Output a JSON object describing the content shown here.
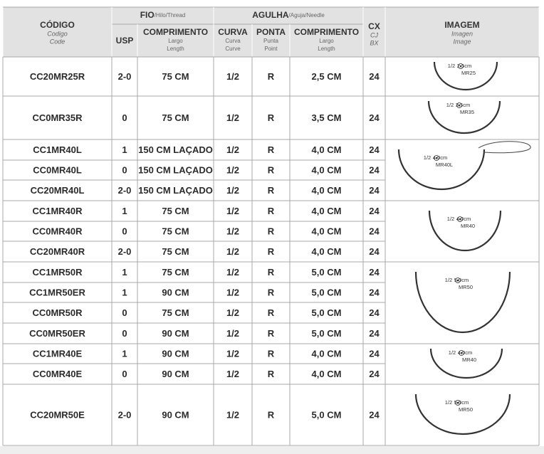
{
  "header": {
    "codigo": {
      "title": "CÓDIGO",
      "es": "Codigo",
      "en": "Code"
    },
    "fio": {
      "title": "FIO",
      "sub": "/Hilo/Thread"
    },
    "usp": "USP",
    "fio_comprimento": {
      "title": "COMPRIMENTO",
      "es": "Largo",
      "en": "Length"
    },
    "agulha": {
      "title": "AGULHA",
      "sub": "/Aguja/Needle"
    },
    "curva": {
      "title": "CURVA",
      "es": "Curva",
      "en": "Curve"
    },
    "ponta": {
      "title": "PONTA",
      "es": "Punta",
      "en": "Point"
    },
    "agulha_comprimento": {
      "title": "COMPRIMENTO",
      "es": "Largo",
      "en": "Length"
    },
    "cx": {
      "title": "CX",
      "es": "CJ",
      "en": "BX"
    },
    "imagem": {
      "title": "IMAGEM",
      "es": "Imagen",
      "en": "Image"
    }
  },
  "table": {
    "rows": [
      [
        "CC20MR25R",
        "2-0",
        "75 CM",
        "1/2",
        "R",
        "2,5 CM",
        "24"
      ],
      [
        "CC0MR35R",
        "0",
        "75 CM",
        "1/2",
        "R",
        "3,5 CM",
        "24"
      ],
      [
        "CC1MR40L",
        "1",
        "150 CM LAÇADO",
        "1/2",
        "R",
        "4,0 CM",
        "24"
      ],
      [
        "CC0MR40L",
        "0",
        "150 CM LAÇADO",
        "1/2",
        "R",
        "4,0 CM",
        "24"
      ],
      [
        "CC20MR40L",
        "2-0",
        "150 CM LAÇADO",
        "1/2",
        "R",
        "4,0 CM",
        "24"
      ],
      [
        "CC1MR40R",
        "1",
        "75 CM",
        "1/2",
        "R",
        "4,0 CM",
        "24"
      ],
      [
        "CC0MR40R",
        "0",
        "75 CM",
        "1/2",
        "R",
        "4,0 CM",
        "24"
      ],
      [
        "CC20MR40R",
        "2-0",
        "75 CM",
        "1/2",
        "R",
        "4,0 CM",
        "24"
      ],
      [
        "CC1MR50R",
        "1",
        "75 CM",
        "1/2",
        "R",
        "5,0 CM",
        "24"
      ],
      [
        "CC1MR50ER",
        "1",
        "90 CM",
        "1/2",
        "R",
        "5,0 CM",
        "24"
      ],
      [
        "CC0MR50R",
        "0",
        "75 CM",
        "1/2",
        "R",
        "5,0 CM",
        "24"
      ],
      [
        "CC0MR50ER",
        "0",
        "90 CM",
        "1/2",
        "R",
        "5,0 CM",
        "24"
      ],
      [
        "CC1MR40E",
        "1",
        "90 CM",
        "1/2",
        "R",
        "4,0 CM",
        "24"
      ],
      [
        "CC0MR40E",
        "0",
        "90 CM",
        "1/2",
        "R",
        "4,0 CM",
        "24"
      ],
      [
        "CC20MR50E",
        "2-0",
        "90 CM",
        "1/2",
        "R",
        "5,0 CM",
        "24"
      ]
    ]
  },
  "images": [
    {
      "curve": "1/2",
      "size": "2,5cm",
      "model": "MR25"
    },
    {
      "curve": "1/2",
      "size": "3,5cm",
      "model": "MR35"
    },
    {
      "curve": "1/2",
      "size": "4,0cm",
      "model": "MR40L"
    },
    {
      "curve": "1/2",
      "size": "4,0cm",
      "model": "MR40"
    },
    {
      "curve": "1/2",
      "size": "5,0cm",
      "model": "MR50"
    },
    {
      "curve": "1/2",
      "size": "4,0cm",
      "model": "MR40"
    },
    {
      "curve": "1/2",
      "size": "5,0cm",
      "model": "MR50"
    }
  ]
}
